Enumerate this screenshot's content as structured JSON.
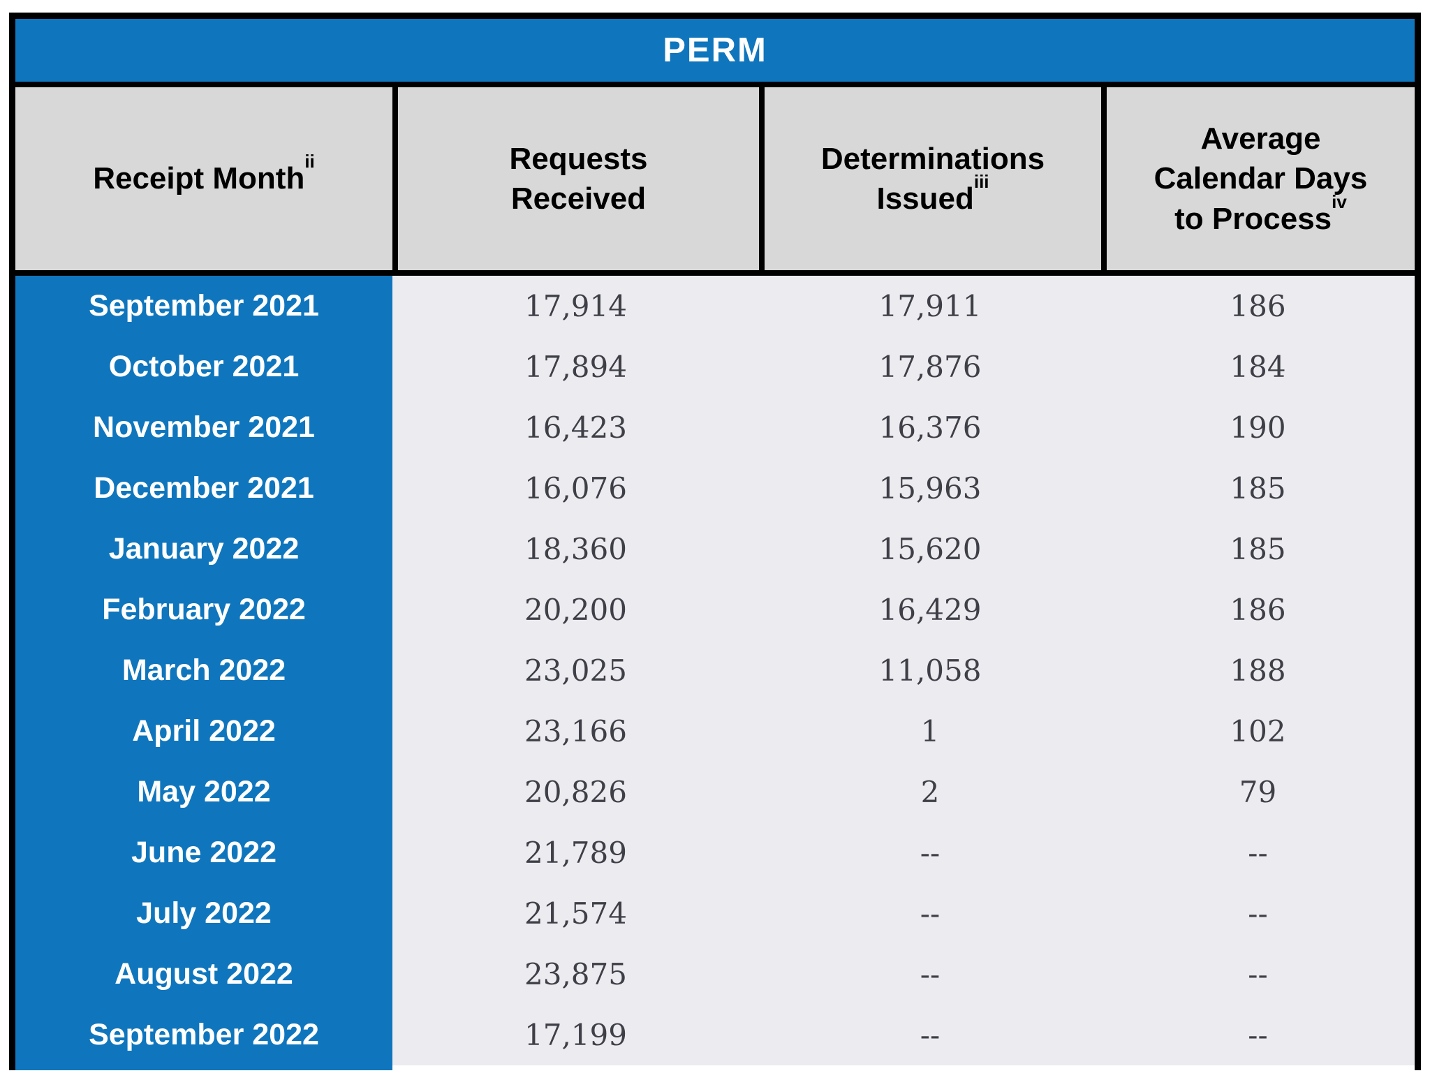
{
  "title": "PERM",
  "colors": {
    "accent-blue": "#0f76bd",
    "header-bg": "#d8d8d8",
    "body-bg": "#ebebf0",
    "number-text": "#3f3f48",
    "border": "#000000",
    "title-text": "#ffffff",
    "month-text": "#ffffff",
    "header-text": "#000000"
  },
  "columns": [
    {
      "label": "Receipt Month",
      "sup": "ii"
    },
    {
      "label": "Requests Received",
      "sup": ""
    },
    {
      "label": "Determinations Issued",
      "sup": "iii"
    },
    {
      "label": "Average Calendar Days to Process",
      "sup": "iv"
    }
  ],
  "rows": [
    {
      "month": "September 2021",
      "requests": "17,914",
      "determinations": "17,911",
      "days": "186"
    },
    {
      "month": "October 2021",
      "requests": "17,894",
      "determinations": "17,876",
      "days": "184"
    },
    {
      "month": "November 2021",
      "requests": "16,423",
      "determinations": "16,376",
      "days": "190"
    },
    {
      "month": "December 2021",
      "requests": "16,076",
      "determinations": "15,963",
      "days": "185"
    },
    {
      "month": "January 2022",
      "requests": "18,360",
      "determinations": "15,620",
      "days": "185"
    },
    {
      "month": "February 2022",
      "requests": "20,200",
      "determinations": "16,429",
      "days": "186"
    },
    {
      "month": "March 2022",
      "requests": "23,025",
      "determinations": "11,058",
      "days": "188"
    },
    {
      "month": "April 2022",
      "requests": "23,166",
      "determinations": "1",
      "days": "102"
    },
    {
      "month": "May 2022",
      "requests": "20,826",
      "determinations": "2",
      "days": "79"
    },
    {
      "month": "June 2022",
      "requests": "21,789",
      "determinations": "--",
      "days": "--"
    },
    {
      "month": "July 2022",
      "requests": "21,574",
      "determinations": "--",
      "days": "--"
    },
    {
      "month": "August 2022",
      "requests": "23,875",
      "determinations": "--",
      "days": "--"
    },
    {
      "month": "September 2022",
      "requests": "17,199",
      "determinations": "--",
      "days": "--"
    }
  ]
}
